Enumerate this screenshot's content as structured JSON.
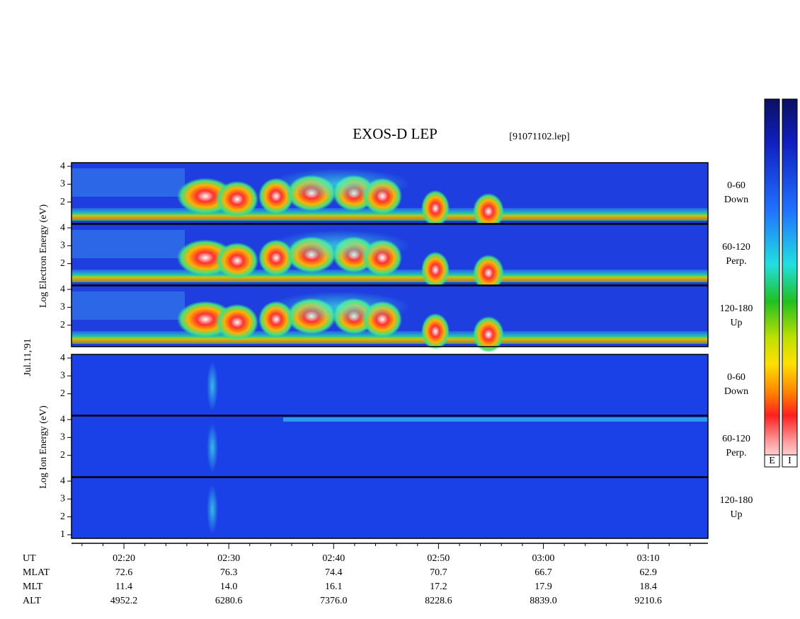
{
  "title": "EXOS-D LEP",
  "file": "[91071102.lep]",
  "date": "Jul.11,'91",
  "chart_data": {
    "type": "spectrogram",
    "xlim": [
      135,
      195.7
    ],
    "xticks": [
      {
        "value": 140,
        "label": "02:20"
      },
      {
        "value": 150,
        "label": "02:30"
      },
      {
        "value": 160,
        "label": "02:40"
      },
      {
        "value": 170,
        "label": "02:50"
      },
      {
        "value": 180,
        "label": "03:00"
      },
      {
        "value": 190,
        "label": "03:10"
      }
    ],
    "xticks_minor": [
      136,
      138,
      142,
      144,
      146,
      148,
      152,
      154,
      156,
      158,
      162,
      164,
      166,
      168,
      172,
      174,
      176,
      178,
      182,
      184,
      186,
      188,
      192,
      194
    ],
    "ylabel_electron": "Log Electron Energy (eV)",
    "ylabel_ion": "Log Ion Energy (eV)",
    "panels": [
      {
        "species": "E",
        "label": "0-60",
        "sublabel": "Down",
        "ylim": [
          0.8,
          4.2
        ],
        "yticks": [
          2,
          3,
          4
        ]
      },
      {
        "species": "E",
        "label": "60-120",
        "sublabel": "Perp.",
        "ylim": [
          0.8,
          4.2
        ],
        "yticks": [
          2,
          3,
          4
        ]
      },
      {
        "species": "E",
        "label": "120-180",
        "sublabel": "Up",
        "ylim": [
          0.8,
          4.2
        ],
        "yticks": [
          2,
          3,
          4
        ]
      },
      {
        "species": "I",
        "label": "0-60",
        "sublabel": "Down",
        "ylim": [
          0.8,
          4.2
        ],
        "yticks": [
          2,
          3,
          4
        ]
      },
      {
        "species": "I",
        "label": "60-120",
        "sublabel": "Perp.",
        "ylim": [
          0.8,
          4.2
        ],
        "yticks": [
          2,
          3,
          4
        ]
      },
      {
        "species": "I",
        "label": "120-180",
        "sublabel": "Up",
        "ylim": [
          0.8,
          4.2
        ],
        "yticks": [
          1,
          2,
          3,
          4
        ]
      }
    ],
    "orbit": [
      {
        "name": "UT"
      },
      {
        "name": "MLAT",
        "values": [
          "72.6",
          "76.3",
          "74.4",
          "70.7",
          "66.7",
          "62.9"
        ]
      },
      {
        "name": "MLT",
        "values": [
          "11.4",
          "14.0",
          "16.1",
          "17.2",
          "17.9",
          "18.4"
        ]
      },
      {
        "name": "ALT",
        "values": [
          "4952.2",
          "6280.6",
          "7376.0",
          "8228.6",
          "8839.0",
          "9210.6"
        ]
      }
    ],
    "colorbar_labels": [
      "E",
      "I"
    ]
  }
}
